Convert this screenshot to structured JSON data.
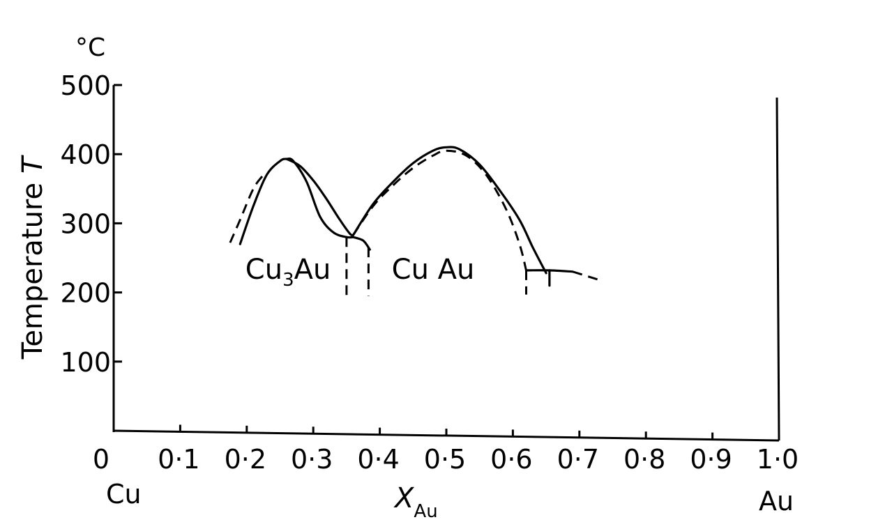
{
  "chart_data": {
    "type": "line",
    "title": "",
    "unit_label": "°C",
    "ylabel": {
      "main": "Temperature ",
      "var": "T"
    },
    "xlabel": {
      "main": "X",
      "sub": "Au"
    },
    "xlim": [
      0,
      1.0
    ],
    "ylim": [
      0,
      500
    ],
    "x_ticks": [
      {
        "value": 0.0,
        "label": "0"
      },
      {
        "value": 0.1,
        "label": "0·1"
      },
      {
        "value": 0.2,
        "label": "0·2"
      },
      {
        "value": 0.3,
        "label": "0·3"
      },
      {
        "value": 0.4,
        "label": "0·4"
      },
      {
        "value": 0.5,
        "label": "0·5"
      },
      {
        "value": 0.6,
        "label": "0·6"
      },
      {
        "value": 0.7,
        "label": "0·7"
      },
      {
        "value": 0.8,
        "label": "0·8"
      },
      {
        "value": 0.9,
        "label": "0·9"
      },
      {
        "value": 1.0,
        "label": "1·0"
      }
    ],
    "y_ticks": [
      {
        "value": 100,
        "label": "100"
      },
      {
        "value": 200,
        "label": "200"
      },
      {
        "value": 300,
        "label": "300"
      },
      {
        "value": 400,
        "label": "400"
      },
      {
        "value": 500,
        "label": "500"
      }
    ],
    "corner_labels": {
      "left": "Cu",
      "right": "Au"
    },
    "region_labels": [
      {
        "main": "Cu",
        "sub": "3",
        "rest": "Au",
        "x": 0.2,
        "y": 250
      },
      {
        "main": "Cu Au",
        "sub": "",
        "rest": "",
        "x": 0.42,
        "y": 250
      }
    ],
    "grid": false,
    "legend": "none",
    "series": [
      {
        "style": "solid",
        "x": [
          0.19,
          0.21,
          0.23,
          0.25,
          0.26,
          0.27,
          0.29,
          0.31,
          0.33,
          0.35,
          0.36
        ],
        "y": [
          270,
          325,
          370,
          390,
          393,
          390,
          360,
          310,
          287,
          280,
          280
        ]
      },
      {
        "style": "solid",
        "x": [
          0.26,
          0.28,
          0.3,
          0.32,
          0.34,
          0.355,
          0.36
        ],
        "y": [
          393,
          383,
          362,
          335,
          305,
          285,
          283
        ]
      },
      {
        "style": "solid",
        "x": [
          0.36,
          0.39,
          0.42,
          0.45,
          0.48,
          0.5,
          0.52,
          0.55,
          0.58,
          0.61,
          0.63,
          0.65
        ],
        "y": [
          283,
          328,
          360,
          387,
          405,
          410,
          407,
          385,
          348,
          305,
          265,
          228
        ]
      },
      {
        "style": "solid",
        "x": [
          0.36,
          0.375,
          0.385
        ],
        "y": [
          280,
          275,
          262
        ]
      },
      {
        "style": "dashed",
        "x": [
          0.175,
          0.19,
          0.21,
          0.225
        ],
        "y": [
          272,
          305,
          350,
          370
        ]
      },
      {
        "style": "dashed",
        "x": [
          0.36,
          0.39,
          0.42,
          0.45,
          0.48,
          0.5,
          0.53,
          0.56,
          0.59,
          0.61,
          0.62
        ],
        "y": [
          283,
          325,
          355,
          380,
          398,
          405,
          398,
          370,
          320,
          270,
          232
        ]
      },
      {
        "style": "dashed",
        "x": [
          0.35,
          0.35
        ],
        "y": [
          280,
          195
        ]
      },
      {
        "style": "dashed",
        "x": [
          0.383,
          0.383
        ],
        "y": [
          265,
          195
        ]
      },
      {
        "style": "dashed",
        "x": [
          0.62,
          0.62
        ],
        "y": [
          232,
          197
        ]
      },
      {
        "style": "solid",
        "x": [
          0.62,
          0.655,
          0.69
        ],
        "y": [
          232,
          232,
          230
        ]
      },
      {
        "style": "dashed",
        "x": [
          0.69,
          0.73
        ],
        "y": [
          230,
          218
        ]
      },
      {
        "style": "solid",
        "x": [
          0.655,
          0.655
        ],
        "y": [
          232,
          210
        ]
      }
    ]
  }
}
